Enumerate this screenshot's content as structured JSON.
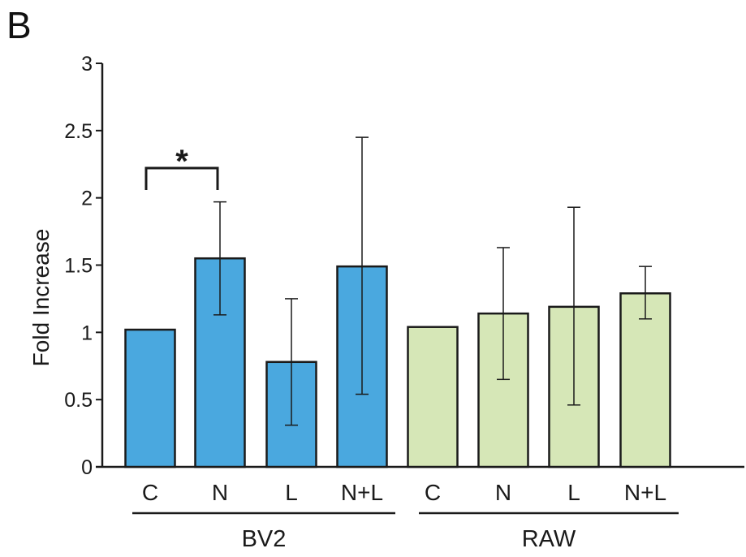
{
  "panel_label": "B",
  "chart_data": {
    "type": "bar",
    "ylabel": "Fold Increase",
    "xlabel": "",
    "ylim": [
      0,
      3
    ],
    "yticks": [
      "0",
      "0.5",
      "1",
      "1.5",
      "2",
      "2.5",
      "3"
    ],
    "categories": [
      "C",
      "N",
      "L",
      "N+L",
      "C",
      "N",
      "L",
      "N+L"
    ],
    "groups": [
      {
        "label": "BV2",
        "indices": [
          0,
          1,
          2,
          3
        ],
        "color": "#4aa8df"
      },
      {
        "label": "RAW",
        "indices": [
          4,
          5,
          6,
          7
        ],
        "color": "#d6e7b7"
      }
    ],
    "values": [
      1.02,
      1.55,
      0.78,
      1.49,
      1.04,
      1.14,
      1.19,
      1.29
    ],
    "error_low": [
      null,
      1.13,
      0.31,
      0.54,
      null,
      0.65,
      0.46,
      1.1
    ],
    "error_high": [
      null,
      1.97,
      1.25,
      2.45,
      null,
      1.63,
      1.93,
      1.49
    ],
    "annotation": {
      "text": "*",
      "from_index": 0,
      "to_index": 1
    },
    "grid": false,
    "legend": "none"
  }
}
